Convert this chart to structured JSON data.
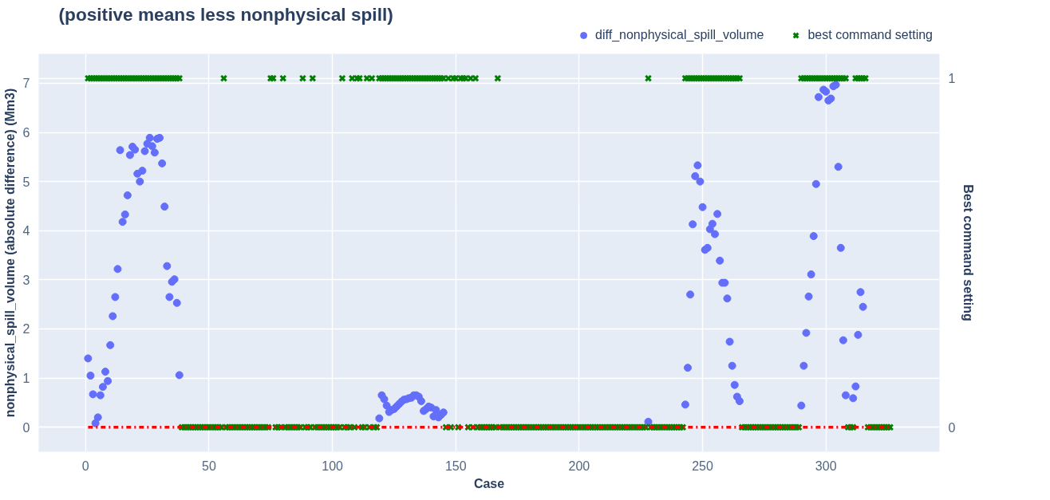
{
  "chart_data": {
    "type": "scatter",
    "title": "(positive means less nonphysical spill)",
    "xlabel": "Case",
    "ylabel": "nonphysical_spill_volume (absolute difference) (Mm3)",
    "y2label": "Best command setting",
    "xlim": [
      -19,
      346
    ],
    "xticks": [
      0,
      50,
      100,
      150,
      200,
      250,
      300
    ],
    "ylim": [
      -0.5,
      7.6
    ],
    "yticks": [
      0,
      1,
      2,
      3,
      4,
      5,
      6,
      7
    ],
    "y2lim": [
      -0.07,
      1.07
    ],
    "y2ticks": [
      0,
      1
    ],
    "grid": true,
    "legend": "top right",
    "series": [
      {
        "name": "diff_nonphysical_spill_volume",
        "marker": "circle",
        "color": "#636efa",
        "x": [
          1,
          2,
          3,
          4,
          5,
          6,
          7,
          8,
          9,
          10,
          11,
          12,
          13,
          14,
          15,
          16,
          17,
          18,
          19,
          20,
          21,
          22,
          23,
          24,
          25,
          26,
          27,
          28,
          29,
          30,
          31,
          32,
          33,
          34,
          35,
          36,
          37,
          38,
          119,
          120,
          121,
          122,
          123,
          124,
          125,
          126,
          127,
          128,
          129,
          130,
          131,
          132,
          133,
          134,
          135,
          136,
          137,
          138,
          139,
          140,
          141,
          142,
          143,
          144,
          145,
          228,
          243,
          244,
          245,
          246,
          247,
          248,
          249,
          250,
          251,
          252,
          253,
          254,
          255,
          256,
          257,
          258,
          259,
          260,
          261,
          262,
          263,
          264,
          265,
          290,
          291,
          292,
          293,
          294,
          295,
          296,
          297,
          299,
          300,
          301,
          302,
          303,
          304,
          305,
          306,
          307,
          308,
          311,
          312,
          313,
          314,
          315
        ],
        "values": [
          1.4,
          1.05,
          0.67,
          0.08,
          0.2,
          0.65,
          0.82,
          1.13,
          0.94,
          1.67,
          2.26,
          2.65,
          3.22,
          5.64,
          4.18,
          4.33,
          4.72,
          5.54,
          5.71,
          5.65,
          5.16,
          5.0,
          5.22,
          5.62,
          5.77,
          5.89,
          5.72,
          5.59,
          5.87,
          5.89,
          5.37,
          4.49,
          3.28,
          2.65,
          2.96,
          3.01,
          2.53,
          1.06,
          0.18,
          0.65,
          0.57,
          0.44,
          0.31,
          0.35,
          0.37,
          0.42,
          0.47,
          0.52,
          0.56,
          0.57,
          0.59,
          0.6,
          0.65,
          0.65,
          0.62,
          0.53,
          0.33,
          0.37,
          0.42,
          0.4,
          0.22,
          0.35,
          0.2,
          0.25,
          0.3,
          0.11,
          0.46,
          1.21,
          2.7,
          4.13,
          5.11,
          5.33,
          5.0,
          4.48,
          3.61,
          3.65,
          4.03,
          4.14,
          3.93,
          4.34,
          3.39,
          2.94,
          2.94,
          2.62,
          1.74,
          1.25,
          0.86,
          0.62,
          0.53,
          0.44,
          1.25,
          1.92,
          2.66,
          3.11,
          3.89,
          4.95,
          6.72,
          6.87,
          6.83,
          6.65,
          6.69,
          6.94,
          6.97,
          5.3,
          3.65,
          1.77,
          0.65,
          0.59,
          0.83,
          1.88,
          2.75,
          2.45
        ]
      },
      {
        "name": "best command setting",
        "marker": "cross",
        "color": "#008000",
        "axis": "y2",
        "x": [
          1,
          2,
          3,
          4,
          5,
          6,
          7,
          8,
          9,
          10,
          11,
          12,
          13,
          14,
          15,
          16,
          17,
          18,
          19,
          20,
          21,
          22,
          23,
          24,
          25,
          26,
          27,
          28,
          29,
          30,
          31,
          32,
          33,
          34,
          35,
          36,
          37,
          38,
          39,
          40,
          41,
          42,
          43,
          44,
          45,
          46,
          47,
          48,
          49,
          50,
          51,
          52,
          53,
          54,
          55,
          56,
          57,
          58,
          59,
          60,
          61,
          62,
          63,
          64,
          65,
          66,
          67,
          68,
          69,
          70,
          71,
          72,
          73,
          74,
          75,
          76,
          77,
          78,
          79,
          80,
          81,
          82,
          83,
          84,
          85,
          86,
          87,
          88,
          89,
          90,
          91,
          92,
          93,
          94,
          95,
          96,
          97,
          98,
          99,
          100,
          101,
          102,
          103,
          104,
          105,
          106,
          107,
          108,
          109,
          110,
          111,
          112,
          113,
          114,
          115,
          116,
          117,
          118,
          119,
          120,
          121,
          122,
          123,
          124,
          125,
          126,
          127,
          128,
          129,
          130,
          131,
          132,
          133,
          134,
          135,
          136,
          137,
          138,
          139,
          140,
          141,
          142,
          143,
          144,
          145,
          146,
          147,
          148,
          149,
          150,
          151,
          152,
          153,
          154,
          155,
          156,
          157,
          158,
          159,
          160,
          161,
          162,
          163,
          164,
          165,
          166,
          167,
          168,
          169,
          170,
          171,
          172,
          173,
          174,
          175,
          176,
          177,
          178,
          179,
          180,
          181,
          182,
          183,
          184,
          185,
          186,
          187,
          188,
          189,
          190,
          191,
          192,
          193,
          194,
          195,
          196,
          197,
          198,
          199,
          200,
          201,
          202,
          203,
          204,
          205,
          206,
          207,
          208,
          209,
          210,
          211,
          212,
          213,
          214,
          215,
          216,
          217,
          218,
          219,
          220,
          221,
          222,
          223,
          224,
          225,
          226,
          227,
          228,
          229,
          230,
          231,
          232,
          233,
          234,
          235,
          236,
          237,
          238,
          239,
          240,
          241,
          242,
          243,
          244,
          245,
          246,
          247,
          248,
          249,
          250,
          251,
          252,
          253,
          254,
          255,
          256,
          257,
          258,
          259,
          260,
          261,
          262,
          263,
          264,
          265,
          266,
          267,
          268,
          269,
          270,
          271,
          272,
          273,
          274,
          275,
          276,
          277,
          278,
          279,
          280,
          281,
          282,
          283,
          284,
          285,
          286,
          287,
          288,
          289,
          290,
          291,
          292,
          293,
          294,
          295,
          296,
          297,
          298,
          299,
          300,
          301,
          302,
          303,
          304,
          305,
          306,
          307,
          308,
          309,
          310,
          311,
          312,
          313,
          314,
          315,
          316,
          317,
          318,
          319,
          320,
          321,
          322,
          323,
          324,
          325,
          326
        ],
        "values": [
          1,
          1,
          1,
          1,
          1,
          1,
          1,
          1,
          1,
          1,
          1,
          1,
          1,
          1,
          1,
          1,
          1,
          1,
          1,
          1,
          1,
          1,
          1,
          1,
          1,
          1,
          1,
          1,
          1,
          1,
          1,
          1,
          1,
          1,
          1,
          1,
          1,
          1,
          0,
          0,
          0,
          0,
          0,
          0,
          0,
          0,
          0,
          0,
          0,
          0,
          0,
          0,
          0,
          0,
          0,
          1,
          0,
          0,
          0,
          0,
          0,
          0,
          0,
          0,
          0,
          0,
          0,
          0,
          0,
          0,
          0,
          0,
          0,
          0,
          1,
          1,
          0,
          0,
          0,
          1,
          0,
          0,
          0,
          0,
          0,
          0,
          0,
          1,
          0,
          0,
          0,
          1,
          0,
          0,
          0,
          0,
          0,
          0,
          0,
          0,
          0,
          0,
          0,
          1,
          0,
          0,
          0,
          1,
          0,
          1,
          1,
          0,
          0,
          1,
          0,
          1,
          0,
          0,
          1,
          1,
          1,
          1,
          1,
          1,
          1,
          1,
          1,
          1,
          1,
          1,
          1,
          1,
          1,
          1,
          1,
          1,
          1,
          1,
          1,
          1,
          1,
          1,
          1,
          1,
          1,
          0,
          1,
          0,
          1,
          1,
          0,
          1,
          1,
          1,
          0,
          1,
          0,
          1,
          0,
          0,
          0,
          0,
          0,
          0,
          0,
          0,
          1,
          0,
          0,
          0,
          0,
          0,
          0,
          0,
          0,
          0,
          0,
          0,
          0,
          0,
          0,
          0,
          0,
          0,
          0,
          0,
          0,
          0,
          0,
          0,
          0,
          0,
          0,
          0,
          0,
          0,
          0,
          0,
          0,
          0,
          0,
          0,
          0,
          0,
          0,
          0,
          0,
          0,
          0,
          0,
          0,
          0,
          0,
          0,
          0,
          0,
          0,
          0,
          0,
          0,
          0,
          0,
          0,
          0,
          0,
          0,
          0,
          1,
          0,
          0,
          0,
          0,
          0,
          0,
          0,
          0,
          0,
          0,
          0,
          0,
          0,
          0,
          1,
          1,
          1,
          1,
          1,
          1,
          1,
          1,
          1,
          1,
          1,
          1,
          1,
          1,
          1,
          1,
          1,
          1,
          1,
          1,
          1,
          1,
          1,
          0,
          0,
          0,
          0,
          0,
          0,
          0,
          0,
          0,
          0,
          0,
          0,
          0,
          0,
          0,
          0,
          0,
          0,
          0,
          0,
          0,
          0,
          0,
          0,
          1,
          1,
          1,
          1,
          1,
          1,
          1,
          1,
          1,
          1,
          1,
          1,
          1,
          1,
          1,
          1,
          1,
          1,
          1,
          0,
          0,
          0,
          1,
          1,
          1,
          1,
          1,
          0,
          0,
          0,
          0,
          0,
          0,
          0,
          0,
          0,
          0
        ]
      },
      {
        "type": "line",
        "line_style": "dashdot",
        "color": "#ff0000",
        "x": [
          1,
          326
        ],
        "values": [
          0,
          0
        ]
      }
    ]
  }
}
